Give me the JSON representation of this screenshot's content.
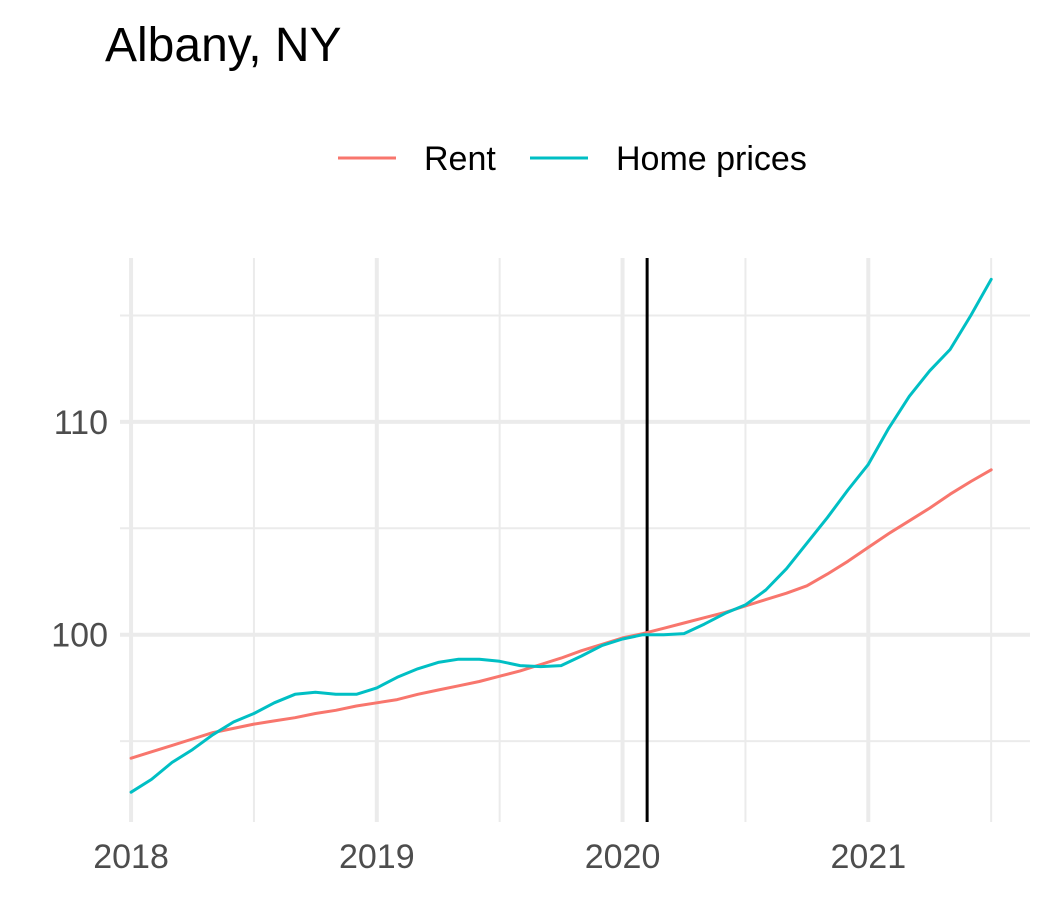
{
  "chart_data": {
    "type": "line",
    "title": "Albany, NY",
    "xlabel": "",
    "ylabel": "",
    "xlim": [
      2017.955,
      2021.658
    ],
    "ylim": [
      91.2,
      117.7
    ],
    "x_ticks": [
      2018,
      2019,
      2020,
      2021
    ],
    "y_ticks": [
      100,
      110
    ],
    "y_minor_ticks": [
      95,
      105,
      115
    ],
    "x_minor_ticks": [
      2018.5,
      2019.5,
      2020.5,
      2021.5
    ],
    "grid": true,
    "legend_position": "top",
    "reference_line": {
      "x": 2020.1
    },
    "x": [
      2018.0,
      2018.083,
      2018.167,
      2018.25,
      2018.333,
      2018.417,
      2018.5,
      2018.583,
      2018.667,
      2018.75,
      2018.833,
      2018.917,
      2019.0,
      2019.083,
      2019.167,
      2019.25,
      2019.333,
      2019.417,
      2019.5,
      2019.583,
      2019.667,
      2019.75,
      2019.833,
      2019.917,
      2020.0,
      2020.083,
      2020.167,
      2020.25,
      2020.333,
      2020.417,
      2020.5,
      2020.583,
      2020.667,
      2020.75,
      2020.833,
      2020.917,
      2021.0,
      2021.083,
      2021.167,
      2021.25,
      2021.333,
      2021.417,
      2021.5
    ],
    "series": [
      {
        "name": "Rent",
        "color": "#F8766D",
        "values": [
          94.2,
          94.5,
          94.8,
          95.1,
          95.4,
          95.6,
          95.8,
          95.95,
          96.1,
          96.3,
          96.45,
          96.65,
          96.8,
          96.95,
          97.2,
          97.4,
          97.6,
          97.8,
          98.05,
          98.3,
          98.6,
          98.9,
          99.25,
          99.55,
          99.85,
          100.05,
          100.3,
          100.55,
          100.8,
          101.05,
          101.35,
          101.65,
          101.95,
          102.3,
          102.85,
          103.45,
          104.1,
          104.75,
          105.35,
          105.95,
          106.6,
          107.2,
          107.75
        ]
      },
      {
        "name": "Home prices",
        "color": "#00BFC4",
        "values": [
          92.6,
          93.2,
          94.0,
          94.6,
          95.3,
          95.9,
          96.3,
          96.8,
          97.2,
          97.3,
          97.2,
          97.2,
          97.5,
          98.0,
          98.4,
          98.7,
          98.85,
          98.85,
          98.75,
          98.55,
          98.5,
          98.55,
          99.0,
          99.5,
          99.8,
          100.0,
          100.0,
          100.05,
          100.5,
          101.0,
          101.4,
          102.1,
          103.1,
          104.3,
          105.5,
          106.8,
          108.0,
          109.7,
          111.2,
          112.4,
          113.4,
          115.0,
          116.7
        ]
      }
    ]
  }
}
